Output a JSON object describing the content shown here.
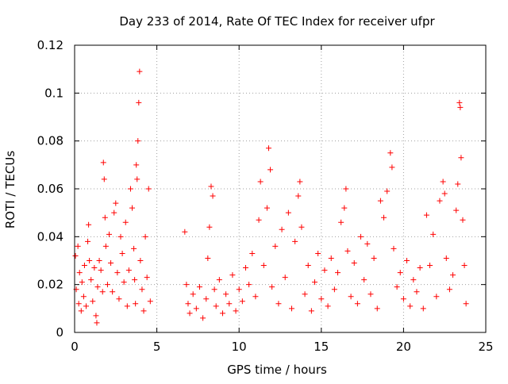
{
  "chart_data": {
    "type": "scatter",
    "title": "Day 233 of 2014, Rate Of TEC Index for receiver ufpr",
    "xlabel": "GPS time / hours",
    "ylabel": "ROTI / TECUs",
    "xlim": [
      0,
      25
    ],
    "ylim": [
      0,
      0.12
    ],
    "xticks": [
      0,
      5,
      10,
      15,
      20,
      25
    ],
    "xtick_labels": [
      "0",
      "5",
      "10",
      "15",
      "20",
      "25"
    ],
    "yticks": [
      0,
      0.02,
      0.04,
      0.06,
      0.08,
      0.1,
      0.12
    ],
    "ytick_labels": [
      "0",
      "0.02",
      "0.04",
      "0.06",
      "0.08",
      "0.1",
      "0.12"
    ],
    "grid": true,
    "marker": "+",
    "color": "#ff0000",
    "series": [
      {
        "name": "ROTI",
        "points": [
          [
            0.05,
            0.032
          ],
          [
            0.1,
            0.018
          ],
          [
            0.2,
            0.036
          ],
          [
            0.25,
            0.012
          ],
          [
            0.3,
            0.025
          ],
          [
            0.4,
            0.009
          ],
          [
            0.45,
            0.021
          ],
          [
            0.55,
            0.015
          ],
          [
            0.6,
            0.028
          ],
          [
            0.7,
            0.011
          ],
          [
            0.8,
            0.038
          ],
          [
            0.85,
            0.045
          ],
          [
            0.9,
            0.03
          ],
          [
            1.0,
            0.022
          ],
          [
            1.1,
            0.013
          ],
          [
            1.2,
            0.027
          ],
          [
            1.3,
            0.007
          ],
          [
            1.35,
            0.004
          ],
          [
            1.4,
            0.019
          ],
          [
            1.5,
            0.03
          ],
          [
            1.6,
            0.026
          ],
          [
            1.7,
            0.017
          ],
          [
            1.75,
            0.071
          ],
          [
            1.8,
            0.064
          ],
          [
            1.85,
            0.048
          ],
          [
            1.9,
            0.036
          ],
          [
            2.0,
            0.02
          ],
          [
            2.1,
            0.041
          ],
          [
            2.2,
            0.029
          ],
          [
            2.3,
            0.017
          ],
          [
            2.4,
            0.05
          ],
          [
            2.5,
            0.054
          ],
          [
            2.6,
            0.025
          ],
          [
            2.7,
            0.014
          ],
          [
            2.8,
            0.04
          ],
          [
            2.9,
            0.033
          ],
          [
            3.0,
            0.021
          ],
          [
            3.1,
            0.046
          ],
          [
            3.2,
            0.011
          ],
          [
            3.3,
            0.026
          ],
          [
            3.4,
            0.06
          ],
          [
            3.5,
            0.052
          ],
          [
            3.6,
            0.035
          ],
          [
            3.65,
            0.022
          ],
          [
            3.7,
            0.012
          ],
          [
            3.75,
            0.07
          ],
          [
            3.8,
            0.064
          ],
          [
            3.85,
            0.08
          ],
          [
            3.9,
            0.096
          ],
          [
            3.95,
            0.109
          ],
          [
            4.0,
            0.03
          ],
          [
            4.1,
            0.018
          ],
          [
            4.2,
            0.009
          ],
          [
            4.3,
            0.04
          ],
          [
            4.4,
            0.023
          ],
          [
            4.5,
            0.06
          ],
          [
            4.6,
            0.013
          ],
          [
            6.7,
            0.042
          ],
          [
            6.8,
            0.02
          ],
          [
            6.9,
            0.012
          ],
          [
            7.0,
            0.008
          ],
          [
            7.2,
            0.016
          ],
          [
            7.4,
            0.01
          ],
          [
            7.6,
            0.019
          ],
          [
            7.8,
            0.006
          ],
          [
            8.0,
            0.014
          ],
          [
            8.1,
            0.031
          ],
          [
            8.2,
            0.044
          ],
          [
            8.3,
            0.061
          ],
          [
            8.4,
            0.057
          ],
          [
            8.5,
            0.018
          ],
          [
            8.6,
            0.011
          ],
          [
            8.8,
            0.022
          ],
          [
            9.0,
            0.008
          ],
          [
            9.2,
            0.016
          ],
          [
            9.4,
            0.012
          ],
          [
            9.6,
            0.024
          ],
          [
            9.8,
            0.009
          ],
          [
            10.0,
            0.018
          ],
          [
            10.2,
            0.013
          ],
          [
            10.4,
            0.027
          ],
          [
            10.6,
            0.02
          ],
          [
            10.8,
            0.033
          ],
          [
            11.0,
            0.015
          ],
          [
            11.2,
            0.047
          ],
          [
            11.3,
            0.063
          ],
          [
            11.5,
            0.028
          ],
          [
            11.7,
            0.052
          ],
          [
            11.8,
            0.077
          ],
          [
            11.9,
            0.068
          ],
          [
            12.0,
            0.019
          ],
          [
            12.2,
            0.036
          ],
          [
            12.4,
            0.012
          ],
          [
            12.6,
            0.043
          ],
          [
            12.8,
            0.023
          ],
          [
            13.0,
            0.05
          ],
          [
            13.2,
            0.01
          ],
          [
            13.4,
            0.038
          ],
          [
            13.6,
            0.057
          ],
          [
            13.7,
            0.063
          ],
          [
            13.8,
            0.044
          ],
          [
            14.0,
            0.016
          ],
          [
            14.2,
            0.028
          ],
          [
            14.4,
            0.009
          ],
          [
            14.6,
            0.021
          ],
          [
            14.8,
            0.033
          ],
          [
            15.0,
            0.014
          ],
          [
            15.2,
            0.026
          ],
          [
            15.4,
            0.011
          ],
          [
            15.6,
            0.031
          ],
          [
            15.8,
            0.018
          ],
          [
            16.0,
            0.025
          ],
          [
            16.2,
            0.046
          ],
          [
            16.4,
            0.052
          ],
          [
            16.5,
            0.06
          ],
          [
            16.6,
            0.034
          ],
          [
            16.8,
            0.015
          ],
          [
            17.0,
            0.029
          ],
          [
            17.2,
            0.012
          ],
          [
            17.4,
            0.04
          ],
          [
            17.6,
            0.022
          ],
          [
            17.8,
            0.037
          ],
          [
            18.0,
            0.016
          ],
          [
            18.2,
            0.031
          ],
          [
            18.4,
            0.01
          ],
          [
            18.6,
            0.055
          ],
          [
            18.8,
            0.048
          ],
          [
            19.0,
            0.059
          ],
          [
            19.2,
            0.075
          ],
          [
            19.3,
            0.069
          ],
          [
            19.4,
            0.035
          ],
          [
            19.6,
            0.019
          ],
          [
            19.8,
            0.025
          ],
          [
            20.0,
            0.014
          ],
          [
            20.2,
            0.03
          ],
          [
            20.4,
            0.011
          ],
          [
            20.6,
            0.022
          ],
          [
            20.8,
            0.017
          ],
          [
            21.0,
            0.027
          ],
          [
            21.2,
            0.01
          ],
          [
            21.4,
            0.049
          ],
          [
            21.6,
            0.028
          ],
          [
            21.8,
            0.041
          ],
          [
            22.0,
            0.015
          ],
          [
            22.2,
            0.055
          ],
          [
            22.4,
            0.063
          ],
          [
            22.5,
            0.058
          ],
          [
            22.6,
            0.031
          ],
          [
            22.8,
            0.018
          ],
          [
            23.0,
            0.024
          ],
          [
            23.2,
            0.051
          ],
          [
            23.3,
            0.062
          ],
          [
            23.4,
            0.096
          ],
          [
            23.45,
            0.094
          ],
          [
            23.5,
            0.073
          ],
          [
            23.6,
            0.047
          ],
          [
            23.7,
            0.028
          ],
          [
            23.8,
            0.012
          ]
        ]
      }
    ]
  }
}
